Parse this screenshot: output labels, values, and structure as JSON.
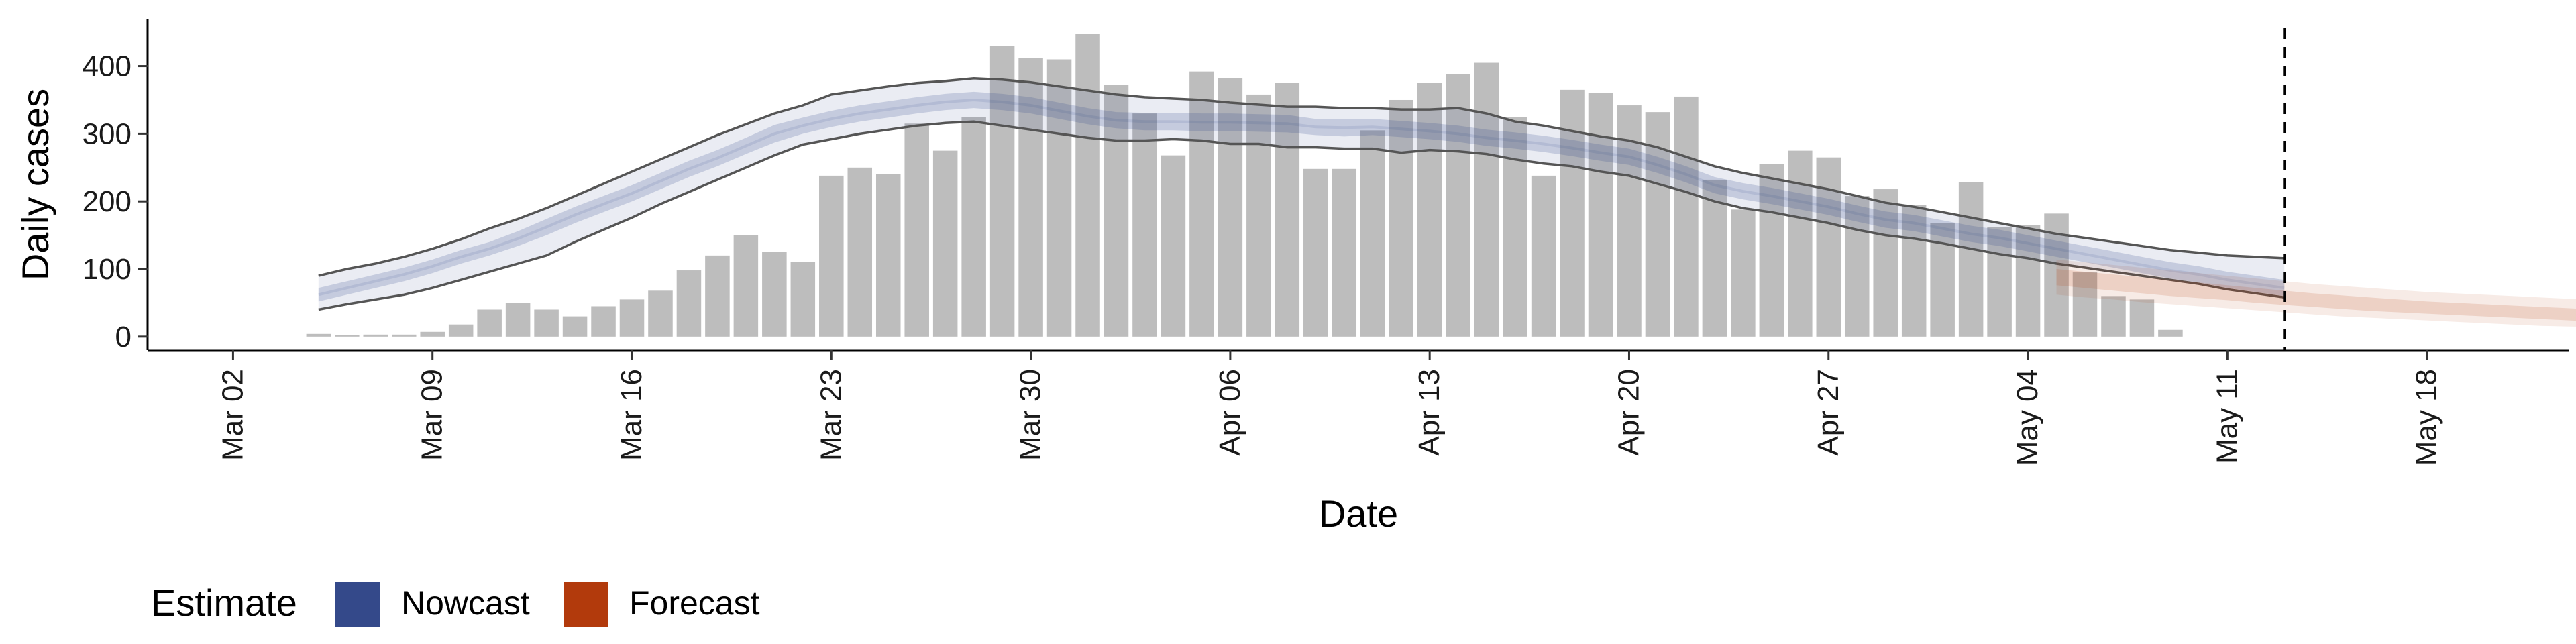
{
  "chart_data": {
    "type": "bar",
    "xlabel": "Date",
    "ylabel": "Daily cases",
    "x_ticks": [
      "Mar 02",
      "Mar 09",
      "Mar 16",
      "Mar 23",
      "Mar 30",
      "Apr 06",
      "Apr 13",
      "Apr 20",
      "Apr 27",
      "May 04",
      "May 11",
      "May 18"
    ],
    "x_tick_dates": [
      "2020-03-02",
      "2020-03-09",
      "2020-03-16",
      "2020-03-23",
      "2020-03-30",
      "2020-04-06",
      "2020-04-13",
      "2020-04-20",
      "2020-04-27",
      "2020-05-04",
      "2020-05-11",
      "2020-05-18"
    ],
    "y_ticks": [
      0,
      100,
      200,
      300,
      400
    ],
    "xlim": [
      "2020-02-28",
      "2020-05-23"
    ],
    "ylim": [
      -20,
      470
    ],
    "grid": false,
    "vline_date": "2020-05-13",
    "bars": {
      "start_date": "2020-03-05",
      "values": [
        4,
        2,
        3,
        3,
        7,
        18,
        40,
        50,
        40,
        30,
        45,
        55,
        68,
        98,
        120,
        150,
        125,
        110,
        238,
        250,
        240,
        315,
        275,
        325,
        430,
        412,
        410,
        448,
        372,
        330,
        268,
        392,
        382,
        358,
        375,
        248,
        248,
        305,
        350,
        375,
        388,
        405,
        325,
        238,
        365,
        360,
        342,
        332,
        355,
        232,
        188,
        255,
        275,
        265,
        208,
        218,
        195,
        168,
        228,
        162,
        165,
        182,
        95,
        60,
        55,
        10
      ]
    },
    "nowcast": {
      "start_date": "2020-03-05",
      "median": [
        62,
        72,
        82,
        92,
        104,
        118,
        130,
        145,
        162,
        180,
        196,
        212,
        230,
        248,
        264,
        282,
        300,
        312,
        322,
        330,
        336,
        342,
        347,
        350,
        347,
        342,
        334,
        326,
        320,
        318,
        318,
        317,
        317,
        316,
        315,
        310,
        309,
        310,
        307,
        304,
        300,
        294,
        290,
        285,
        279,
        272,
        266,
        254,
        240,
        224,
        215,
        208,
        200,
        192,
        182,
        173,
        168,
        160,
        152,
        146,
        138,
        130,
        122,
        114,
        106,
        98,
        92,
        84,
        78,
        72
      ],
      "inner_lower": [
        52,
        62,
        72,
        82,
        94,
        108,
        120,
        134,
        150,
        168,
        184,
        200,
        218,
        236,
        252,
        270,
        287,
        300,
        310,
        318,
        324,
        330,
        335,
        338,
        335,
        330,
        322,
        314,
        308,
        305,
        305,
        304,
        304,
        303,
        302,
        298,
        296,
        298,
        295,
        292,
        288,
        282,
        278,
        273,
        267,
        260,
        254,
        242,
        228,
        212,
        203,
        196,
        188,
        180,
        170,
        161,
        156,
        148,
        140,
        134,
        126,
        118,
        110,
        102,
        94,
        86,
        80,
        72,
        66,
        60
      ],
      "inner_upper": [
        72,
        82,
        92,
        102,
        114,
        128,
        140,
        156,
        174,
        192,
        208,
        224,
        242,
        260,
        276,
        294,
        313,
        324,
        334,
        342,
        348,
        354,
        359,
        362,
        359,
        354,
        346,
        338,
        332,
        331,
        331,
        330,
        330,
        329,
        328,
        322,
        322,
        322,
        319,
        316,
        312,
        306,
        302,
        297,
        291,
        284,
        278,
        266,
        252,
        236,
        227,
        220,
        212,
        204,
        194,
        185,
        180,
        172,
        164,
        158,
        150,
        142,
        134,
        126,
        118,
        110,
        104,
        96,
        90,
        84
      ],
      "outer_lower": [
        40,
        48,
        55,
        62,
        72,
        84,
        96,
        108,
        120,
        140,
        158,
        176,
        196,
        214,
        232,
        250,
        268,
        284,
        292,
        300,
        306,
        312,
        316,
        318,
        312,
        306,
        300,
        294,
        290,
        290,
        292,
        290,
        285,
        285,
        280,
        280,
        278,
        278,
        272,
        276,
        274,
        270,
        262,
        256,
        252,
        244,
        238,
        226,
        214,
        200,
        190,
        184,
        176,
        168,
        158,
        150,
        145,
        138,
        130,
        122,
        116,
        108,
        102,
        96,
        90,
        84,
        78,
        70,
        64,
        58
      ],
      "outer_upper": [
        90,
        100,
        108,
        118,
        130,
        144,
        160,
        174,
        190,
        208,
        226,
        244,
        262,
        280,
        298,
        314,
        330,
        342,
        358,
        364,
        370,
        375,
        378,
        382,
        380,
        376,
        370,
        364,
        358,
        354,
        352,
        350,
        346,
        343,
        340,
        340,
        338,
        338,
        336,
        336,
        338,
        330,
        318,
        312,
        304,
        296,
        290,
        280,
        266,
        252,
        242,
        234,
        226,
        218,
        208,
        198,
        192,
        184,
        176,
        168,
        160,
        152,
        146,
        140,
        134,
        128,
        124,
        120,
        118,
        116
      ]
    },
    "forecast": {
      "start_date": "2020-05-05",
      "median": [
        88,
        84,
        80,
        76,
        72,
        68,
        64,
        60,
        57,
        54,
        51,
        48,
        45,
        42,
        40,
        38,
        36,
        34,
        32,
        30,
        28
      ],
      "inner_lower": [
        76,
        72,
        68,
        64,
        60,
        57,
        54,
        50,
        47,
        44,
        41,
        38,
        36,
        34,
        32,
        30,
        28,
        26,
        24,
        22,
        20
      ],
      "inner_upper": [
        100,
        96,
        92,
        88,
        84,
        80,
        76,
        72,
        68,
        64,
        61,
        58,
        55,
        52,
        50,
        48,
        46,
        44,
        42,
        40,
        38
      ],
      "outer_lower": [
        62,
        58,
        55,
        51,
        48,
        45,
        42,
        39,
        36,
        33,
        30,
        28,
        26,
        24,
        22,
        20,
        18,
        16,
        15,
        14,
        12
      ],
      "outer_upper": [
        114,
        110,
        106,
        102,
        98,
        94,
        90,
        86,
        82,
        78,
        75,
        72,
        69,
        66,
        64,
        62,
        60,
        58,
        56,
        54,
        52
      ]
    },
    "legend": {
      "title": "Estimate",
      "position": "bottom-left",
      "items": [
        {
          "label": "Nowcast",
          "color": "#34498A"
        },
        {
          "label": "Forecast",
          "color": "#B23A0C"
        }
      ]
    }
  }
}
